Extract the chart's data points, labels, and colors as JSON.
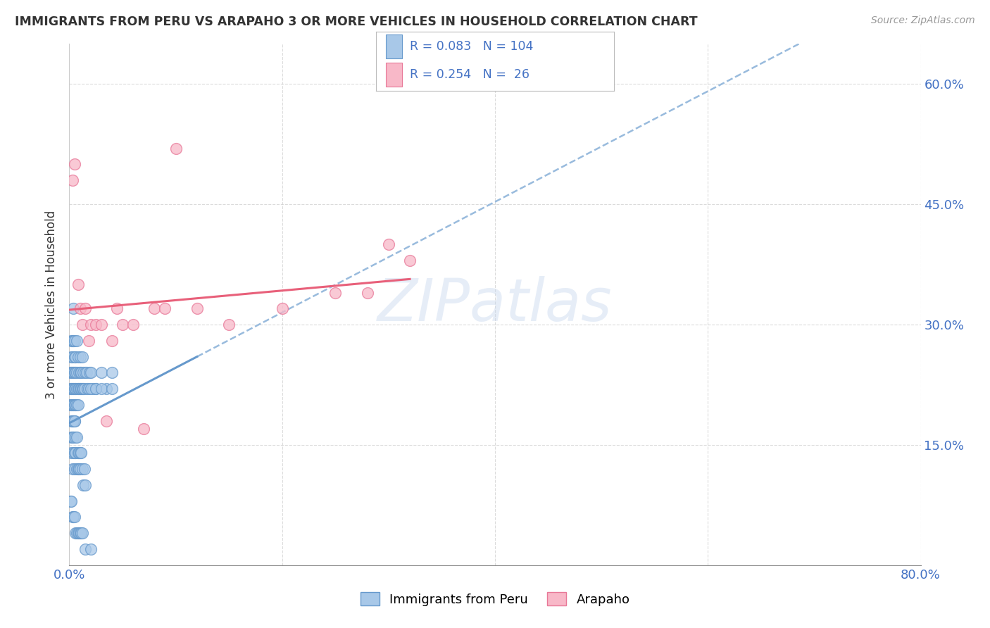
{
  "title": "IMMIGRANTS FROM PERU VS ARAPAHO 3 OR MORE VEHICLES IN HOUSEHOLD CORRELATION CHART",
  "source": "Source: ZipAtlas.com",
  "ylabel": "3 or more Vehicles in Household",
  "xlim": [
    0.0,
    0.8
  ],
  "ylim": [
    0.0,
    0.65
  ],
  "xtick_vals": [
    0.0,
    0.2,
    0.4,
    0.6,
    0.8
  ],
  "xticklabels": [
    "0.0%",
    "",
    "",
    "",
    "80.0%"
  ],
  "ytick_vals": [
    0.0,
    0.15,
    0.3,
    0.45,
    0.6
  ],
  "yticklabels": [
    "",
    "15.0%",
    "30.0%",
    "45.0%",
    "60.0%"
  ],
  "blue_fill": "#a8c8e8",
  "blue_edge": "#6699cc",
  "pink_fill": "#f8b8c8",
  "pink_edge": "#e87898",
  "blue_line": "#6699cc",
  "pink_line": "#e8607a",
  "dash_line": "#99bbdd",
  "series1_label": "Immigrants from Peru",
  "series2_label": "Arapaho",
  "watermark": "ZIPatlas",
  "blue_R": 0.083,
  "blue_N": 104,
  "pink_R": 0.254,
  "pink_N": 26,
  "blue_x_raw": [
    0.001,
    0.001,
    0.001,
    0.002,
    0.002,
    0.002,
    0.002,
    0.002,
    0.002,
    0.003,
    0.003,
    0.003,
    0.003,
    0.003,
    0.003,
    0.004,
    0.004,
    0.004,
    0.004,
    0.004,
    0.005,
    0.005,
    0.005,
    0.005,
    0.005,
    0.005,
    0.006,
    0.006,
    0.006,
    0.006,
    0.007,
    0.007,
    0.007,
    0.007,
    0.008,
    0.008,
    0.008,
    0.009,
    0.009,
    0.01,
    0.01,
    0.01,
    0.011,
    0.011,
    0.012,
    0.012,
    0.013,
    0.013,
    0.014,
    0.015,
    0.016,
    0.017,
    0.018,
    0.019,
    0.02,
    0.022,
    0.025,
    0.03,
    0.035,
    0.04,
    0.002,
    0.002,
    0.003,
    0.003,
    0.003,
    0.004,
    0.004,
    0.004,
    0.005,
    0.005,
    0.005,
    0.006,
    0.006,
    0.007,
    0.007,
    0.008,
    0.008,
    0.009,
    0.009,
    0.01,
    0.01,
    0.011,
    0.012,
    0.013,
    0.014,
    0.015,
    0.02,
    0.025,
    0.03,
    0.04,
    0.001,
    0.002,
    0.003,
    0.004,
    0.005,
    0.006,
    0.007,
    0.008,
    0.009,
    0.01,
    0.011,
    0.012,
    0.015,
    0.02
  ],
  "blue_y_raw": [
    0.22,
    0.24,
    0.2,
    0.26,
    0.22,
    0.2,
    0.24,
    0.28,
    0.18,
    0.22,
    0.26,
    0.24,
    0.28,
    0.2,
    0.18,
    0.22,
    0.28,
    0.24,
    0.32,
    0.2,
    0.24,
    0.22,
    0.28,
    0.2,
    0.26,
    0.18,
    0.22,
    0.26,
    0.24,
    0.2,
    0.24,
    0.22,
    0.28,
    0.2,
    0.22,
    0.26,
    0.2,
    0.24,
    0.22,
    0.24,
    0.22,
    0.26,
    0.22,
    0.24,
    0.22,
    0.26,
    0.22,
    0.24,
    0.22,
    0.24,
    0.24,
    0.22,
    0.22,
    0.24,
    0.24,
    0.22,
    0.22,
    0.24,
    0.22,
    0.24,
    0.14,
    0.16,
    0.12,
    0.16,
    0.18,
    0.14,
    0.18,
    0.16,
    0.14,
    0.18,
    0.12,
    0.16,
    0.14,
    0.12,
    0.16,
    0.14,
    0.12,
    0.14,
    0.12,
    0.14,
    0.12,
    0.14,
    0.12,
    0.1,
    0.12,
    0.1,
    0.22,
    0.22,
    0.22,
    0.22,
    0.08,
    0.08,
    0.06,
    0.06,
    0.06,
    0.04,
    0.04,
    0.04,
    0.04,
    0.04,
    0.04,
    0.04,
    0.02,
    0.02
  ],
  "pink_x_raw": [
    0.003,
    0.005,
    0.008,
    0.01,
    0.012,
    0.015,
    0.018,
    0.02,
    0.025,
    0.03,
    0.035,
    0.04,
    0.045,
    0.05,
    0.06,
    0.07,
    0.08,
    0.09,
    0.1,
    0.12,
    0.15,
    0.2,
    0.25,
    0.28,
    0.3,
    0.32
  ],
  "pink_y_raw": [
    0.48,
    0.5,
    0.35,
    0.32,
    0.3,
    0.32,
    0.28,
    0.3,
    0.3,
    0.3,
    0.18,
    0.28,
    0.32,
    0.3,
    0.3,
    0.17,
    0.32,
    0.32,
    0.52,
    0.32,
    0.3,
    0.32,
    0.34,
    0.34,
    0.4,
    0.38
  ]
}
